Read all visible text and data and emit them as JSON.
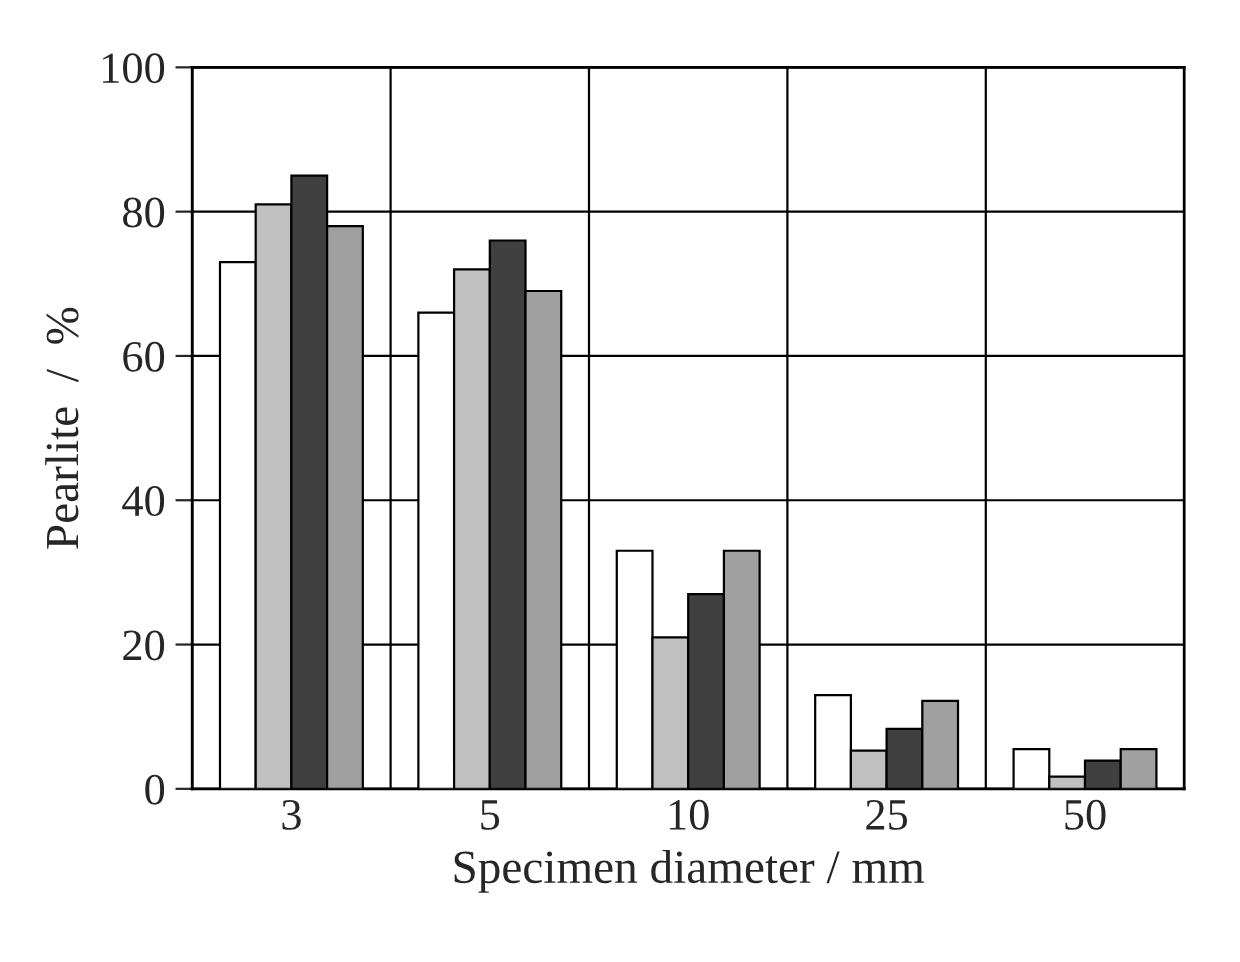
{
  "chart_data": {
    "type": "bar",
    "xlabel": "Specimen diameter / mm",
    "ylabel": "Pearlite  /  %",
    "categories": [
      "3",
      "5",
      "10",
      "25",
      "50"
    ],
    "series": [
      {
        "color": "#ffffff",
        "values": [
          73,
          66,
          33,
          13,
          5.5
        ]
      },
      {
        "color": "#c0c0c0",
        "values": [
          81,
          72,
          21,
          5.3,
          1.7
        ]
      },
      {
        "color": "#404040",
        "values": [
          85,
          76,
          27,
          8.3,
          3.9
        ]
      },
      {
        "color": "#a0a0a0",
        "values": [
          78,
          69,
          33,
          12.2,
          5.5
        ]
      }
    ],
    "ylim": [
      0,
      100
    ],
    "yticks": [
      0,
      20,
      40,
      60,
      80,
      100
    ],
    "grid": true
  }
}
